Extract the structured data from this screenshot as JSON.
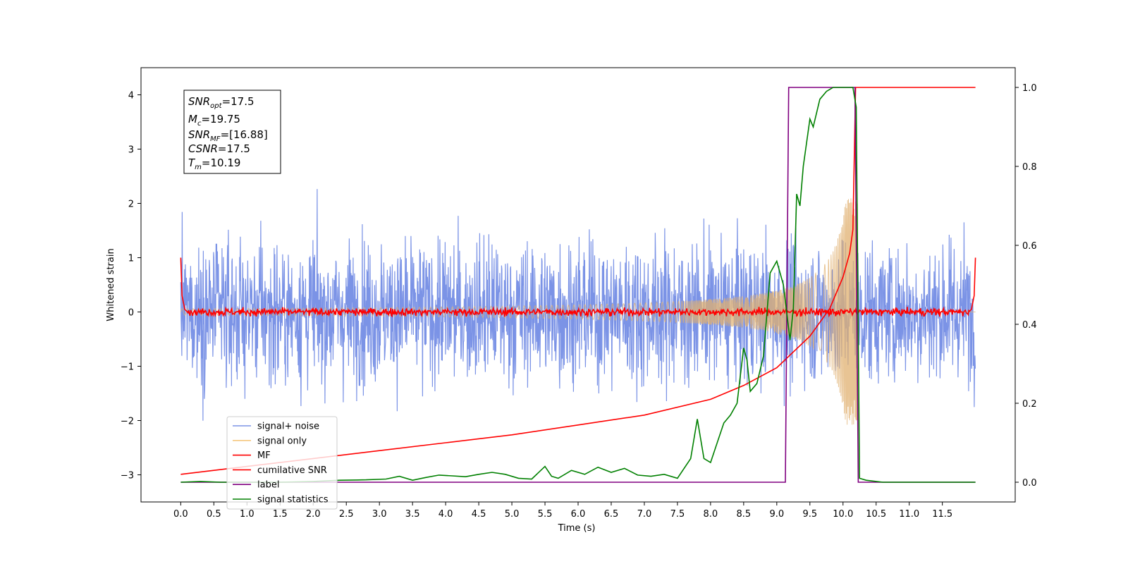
{
  "chart_data": {
    "type": "line",
    "xlabel": "Time (s)",
    "ylabel": "Whitened strain",
    "xlim": [
      -0.6,
      12.6
    ],
    "ylim_left": [
      -3.5,
      4.5
    ],
    "ylim_right": [
      -0.05,
      1.05
    ],
    "x_ticks": [
      "0.0",
      "0.5",
      "1.0",
      "1.5",
      "2.0",
      "2.5",
      "3.0",
      "3.5",
      "4.0",
      "4.5",
      "5.0",
      "5.5",
      "6.0",
      "6.5",
      "7.0",
      "7.5",
      "8.0",
      "8.5",
      "9.0",
      "9.5",
      "10.0",
      "10.5",
      "11.0",
      "11.5"
    ],
    "y_ticks_left": [
      "−3",
      "−2",
      "−1",
      "0",
      "1",
      "2",
      "3",
      "4"
    ],
    "y_ticks_right": [
      "0.0",
      "0.2",
      "0.4",
      "0.6",
      "0.8",
      "1.0"
    ],
    "info_box": {
      "snr_opt": {
        "base": "SNR",
        "sub": "opt",
        "value": "=17.5"
      },
      "mc": {
        "base": "M",
        "sub": "c",
        "value": "=19.75"
      },
      "snr_mf": {
        "base": "SNR",
        "sub": "MF",
        "value": "=[16.88]"
      },
      "csnr": {
        "base": "CSNR",
        "sub": "",
        "value": "=17.5"
      },
      "tm": {
        "base": "T",
        "sub": "m",
        "value": "=10.19"
      }
    },
    "legend": {
      "position": "lower-left",
      "entries": [
        {
          "label": "signal+ noise",
          "color": "#7b93e6"
        },
        {
          "label": "signal only",
          "color": "#f5c77e"
        },
        {
          "label": "MF",
          "color": "#ff0000"
        },
        {
          "label": "cumilative SNR",
          "color": "#ff0000"
        },
        {
          "label": "label",
          "color": "#800080"
        },
        {
          "label": "signal statistics",
          "color": "#008000"
        }
      ]
    },
    "series": [
      {
        "name": "signal+ noise",
        "axis": "left",
        "description": "noise amplitude approx ±2.5 over 0–12 s",
        "color": "#7b93e6"
      },
      {
        "name": "signal only",
        "axis": "left",
        "description": "chirp growing to amplitude ~2 near 10.19 s",
        "color": "#e0b070"
      },
      {
        "name": "MF",
        "axis": "left",
        "color": "#ff0000",
        "x": [
          0.0,
          0.02,
          0.06,
          0.1,
          11.9,
          11.94,
          11.98,
          12.0
        ],
        "y": [
          1.0,
          0.3,
          0.05,
          0.0,
          0.0,
          0.05,
          0.3,
          1.0
        ]
      },
      {
        "name": "cumilative SNR",
        "axis": "right",
        "color": "#ff0000",
        "x": [
          0.0,
          1.0,
          2.0,
          3.0,
          4.0,
          5.0,
          6.0,
          7.0,
          8.0,
          8.5,
          9.0,
          9.5,
          9.8,
          10.0,
          10.1,
          10.15,
          10.19,
          11.0,
          12.0
        ],
        "y": [
          0.02,
          0.04,
          0.06,
          0.08,
          0.1,
          0.12,
          0.145,
          0.17,
          0.21,
          0.245,
          0.29,
          0.37,
          0.44,
          0.52,
          0.58,
          0.64,
          1.0,
          1.0,
          1.0
        ]
      },
      {
        "name": "label",
        "axis": "right",
        "color": "#800080",
        "x": [
          0.0,
          9.13,
          9.18,
          10.18,
          10.23,
          12.0
        ],
        "y": [
          0.0,
          0.0,
          1.0,
          1.0,
          0.0,
          0.0
        ]
      },
      {
        "name": "signal statistics",
        "axis": "right",
        "color": "#008000",
        "x": [
          0.0,
          0.3,
          0.6,
          1.0,
          1.5,
          2.0,
          2.4,
          2.8,
          3.1,
          3.3,
          3.5,
          3.7,
          3.9,
          4.1,
          4.3,
          4.5,
          4.7,
          4.9,
          5.1,
          5.3,
          5.5,
          5.6,
          5.7,
          5.9,
          6.1,
          6.3,
          6.5,
          6.7,
          6.9,
          7.1,
          7.3,
          7.5,
          7.7,
          7.8,
          7.9,
          8.0,
          8.1,
          8.2,
          8.3,
          8.4,
          8.5,
          8.55,
          8.6,
          8.7,
          8.8,
          8.9,
          9.0,
          9.1,
          9.2,
          9.25,
          9.3,
          9.35,
          9.4,
          9.5,
          9.55,
          9.65,
          9.75,
          9.85,
          9.95,
          10.05,
          10.15,
          10.2,
          10.25,
          10.35,
          10.6,
          11.0,
          11.5,
          12.0
        ],
        "y": [
          0.0,
          0.002,
          0.0,
          0.0,
          0.0,
          0.002,
          0.005,
          0.006,
          0.008,
          0.015,
          0.005,
          0.012,
          0.018,
          0.016,
          0.014,
          0.02,
          0.025,
          0.02,
          0.01,
          0.008,
          0.04,
          0.015,
          0.01,
          0.03,
          0.02,
          0.038,
          0.025,
          0.035,
          0.018,
          0.015,
          0.02,
          0.01,
          0.06,
          0.16,
          0.06,
          0.05,
          0.1,
          0.15,
          0.17,
          0.2,
          0.34,
          0.31,
          0.23,
          0.25,
          0.32,
          0.53,
          0.56,
          0.5,
          0.36,
          0.44,
          0.73,
          0.7,
          0.8,
          0.92,
          0.9,
          0.97,
          0.99,
          1.0,
          1.0,
          1.0,
          1.0,
          0.95,
          0.01,
          0.005,
          0.0,
          0.0,
          0.0,
          0.0
        ]
      }
    ]
  }
}
